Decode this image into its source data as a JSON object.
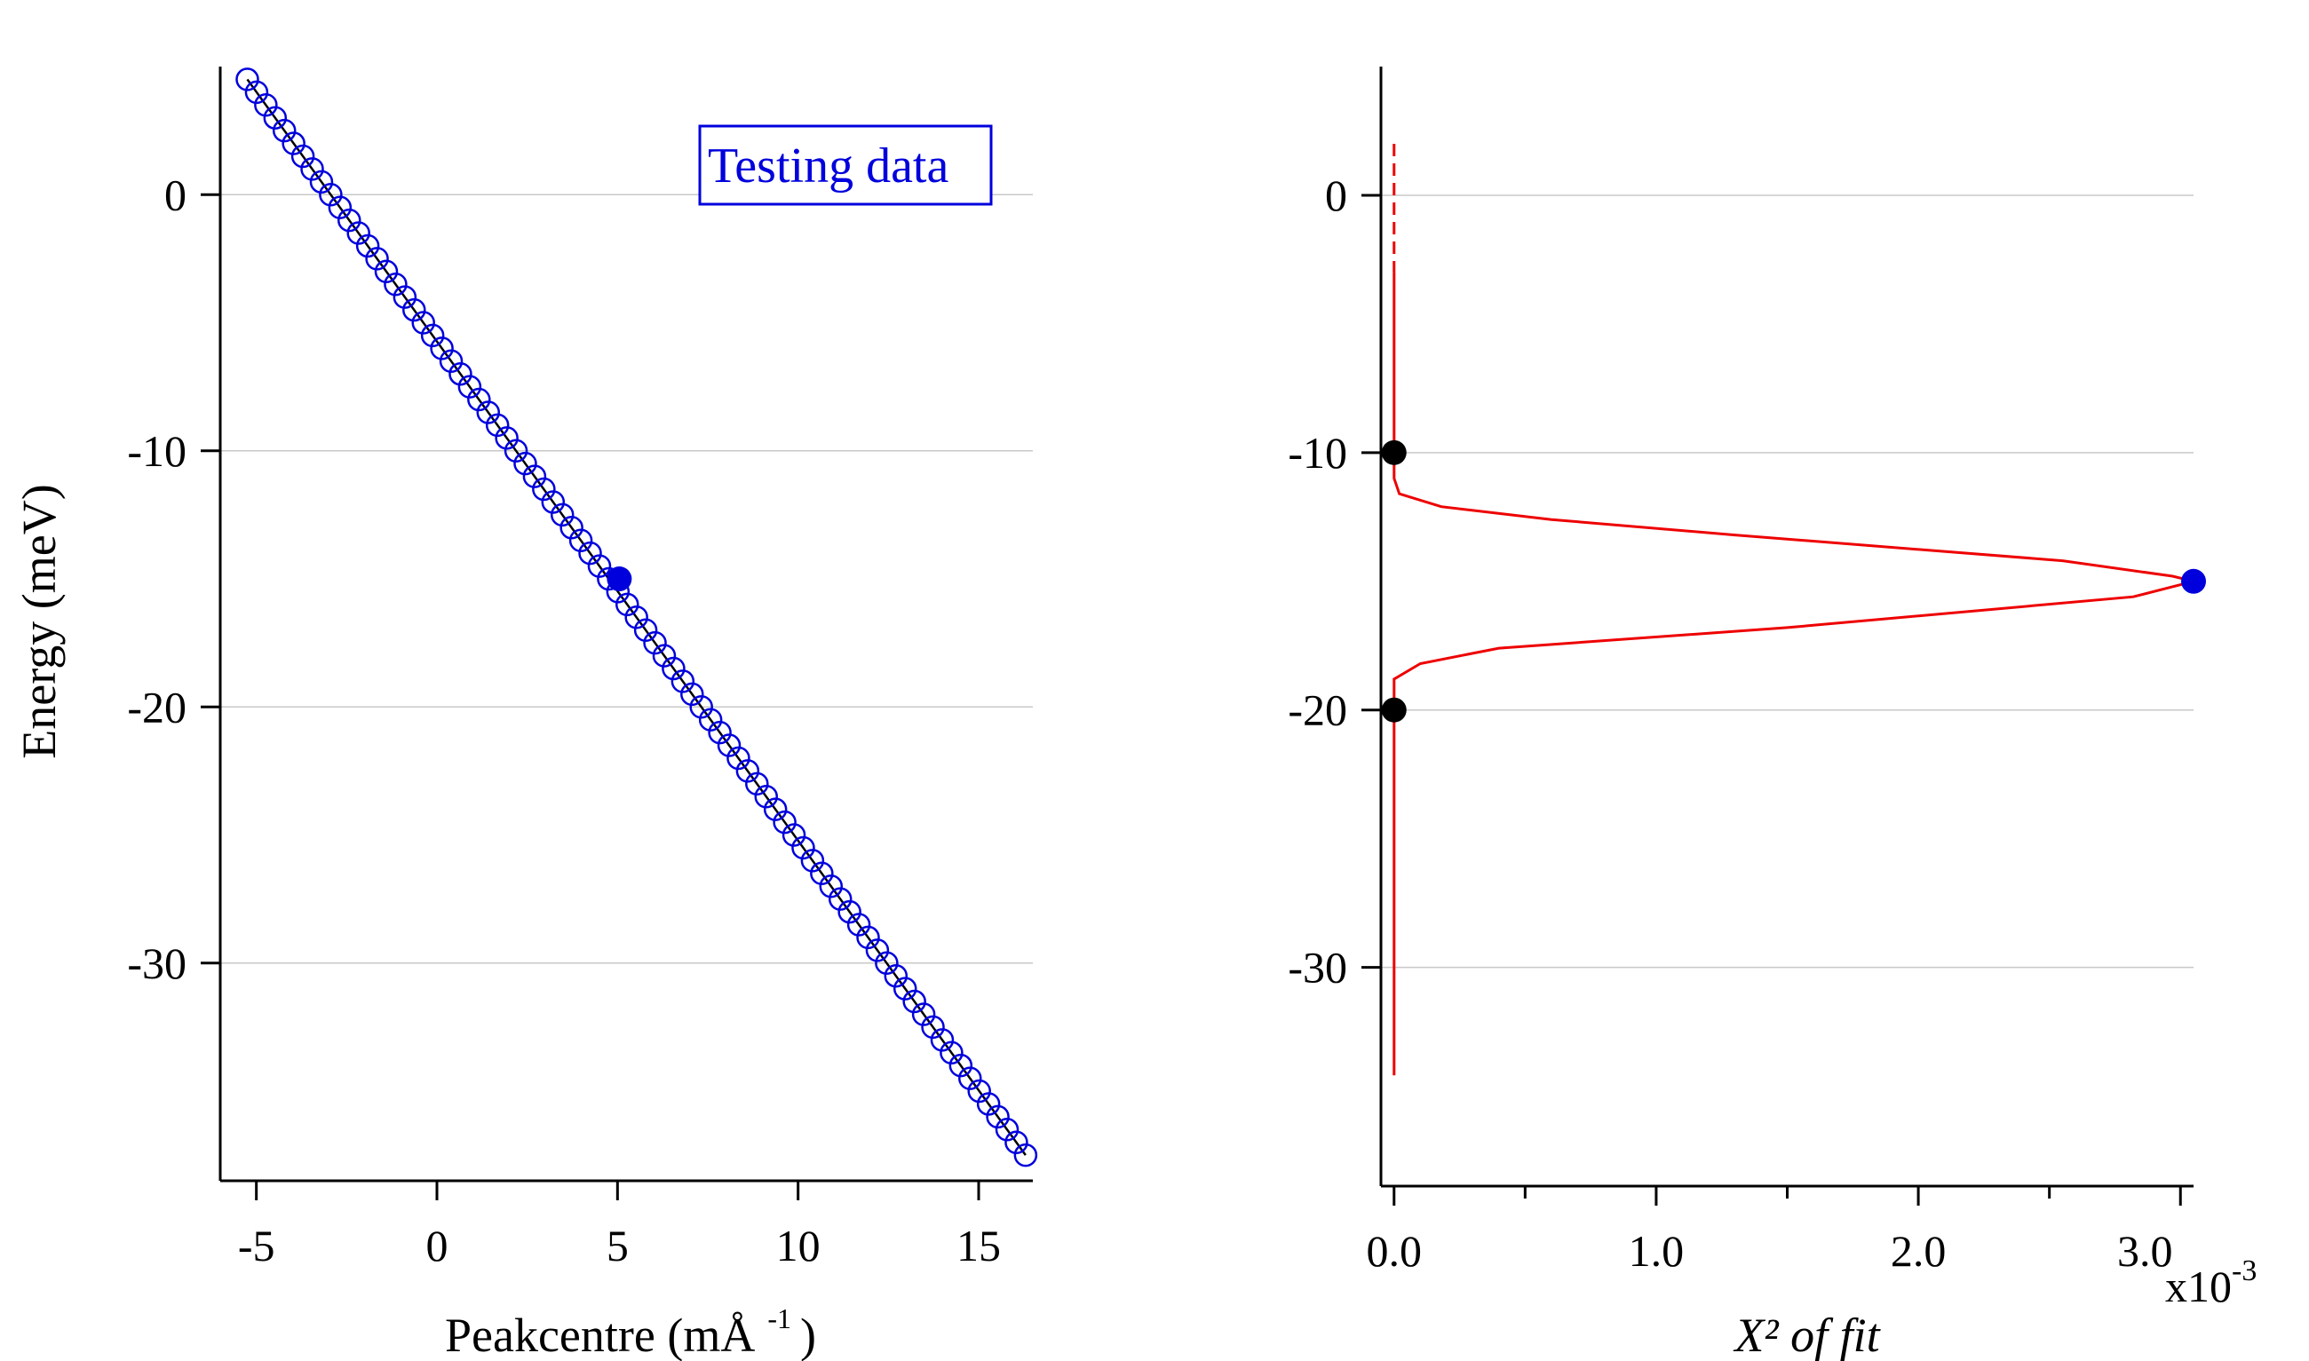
{
  "chart_data": [
    {
      "type": "scatter",
      "title": "",
      "xlabel": "Peakcentre (mÅ",
      "xlabel_sup": "-1",
      "xlabel_close": ")",
      "ylabel": "Energy (meV)",
      "xlim": [
        -6,
        16.5
      ],
      "ylim": [
        -38.5,
        5
      ],
      "x_ticks": [
        -5,
        0,
        5,
        10,
        15
      ],
      "y_ticks": [
        0,
        -10,
        -20,
        -30
      ],
      "grid": "horizontal",
      "legend": {
        "text": "Testing data",
        "placement": "top-right"
      },
      "series": [
        {
          "name": "Testing data",
          "marker": "open-circle",
          "color": "#0000dd",
          "energy_start": 4.5,
          "energy_end": -37.5,
          "energy_step": -0.5,
          "x_at_energy_start": -5.25,
          "x_at_energy_end": 16.3
        },
        {
          "marker": "line",
          "color": "#000000",
          "x": [
            -5.25,
            16.3
          ],
          "y": [
            4.5,
            -37.5
          ]
        }
      ],
      "highlight_point": {
        "x": 5.05,
        "y": -15,
        "color": "#0000dd"
      }
    },
    {
      "type": "line",
      "title": "",
      "xlabel": "X² of fit",
      "ylabel": "",
      "xlim": [
        -0.05,
        3.05
      ],
      "x_multiplier_label": "x10",
      "x_multiplier_exp": "-3",
      "ylim": [
        -38.5,
        5
      ],
      "x_ticks": [
        0.0,
        1.0,
        2.0,
        3.0
      ],
      "x_tick_labels": [
        "0.0",
        "1.0",
        "2.0",
        "3.0"
      ],
      "x_minor_ticks": [
        0.5,
        1.5,
        2.5
      ],
      "y_ticks": [
        0,
        -10,
        -20,
        -30
      ],
      "grid": "horizontal",
      "series": [
        {
          "marker": "line",
          "color": "#ee0000",
          "x": [
            0.0,
            0.0,
            0.0,
            0.02,
            0.18,
            0.6,
            1.3,
            2.55,
            2.97,
            3.05,
            2.82,
            1.5,
            0.4,
            0.1,
            0.0,
            0.0,
            0.0
          ],
          "y": [
            -3,
            -9,
            -11,
            -11.6,
            -12.1,
            -12.6,
            -13.2,
            -14.2,
            -14.8,
            -15,
            -15.6,
            -16.8,
            -17.6,
            -18.2,
            -18.8,
            -20,
            -34.2
          ]
        },
        {
          "marker": "dashed-line",
          "color": "#ee0000",
          "x": [
            0.0,
            0.0
          ],
          "y": [
            2,
            -3
          ]
        }
      ],
      "highlight_points": [
        {
          "x": 0.0,
          "y": -10,
          "color": "#000000"
        },
        {
          "x": 0.0,
          "y": -20,
          "color": "#000000"
        },
        {
          "x": 3.05,
          "y": -15,
          "color": "#0000dd"
        }
      ]
    }
  ]
}
